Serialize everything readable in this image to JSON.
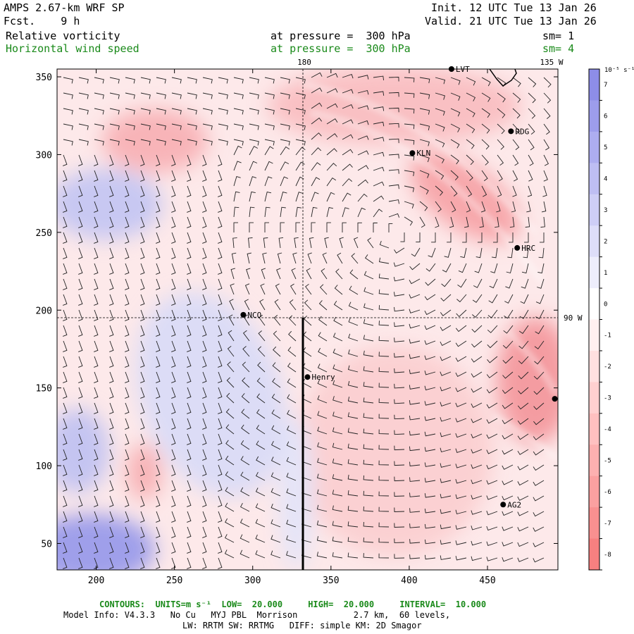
{
  "header": {
    "model": "AMPS 2.67-km WRF SP",
    "fcst": "Fcst.    9 h",
    "init": "Init. 12 UTC Tue 13 Jan 26",
    "valid": "Valid. 21 UTC Tue 13 Jan 26",
    "field1": "Relative vorticity",
    "field1_pressure": "at pressure =  300 hPa",
    "field1_sm": "sm= 1",
    "field2": "Horizontal wind speed",
    "field2_pressure": "at pressure =  300 hPa",
    "field2_sm": "sm= 4"
  },
  "map": {
    "x_ticks": [
      200,
      250,
      300,
      350,
      400,
      450
    ],
    "y_ticks": [
      50,
      100,
      150,
      200,
      250,
      300,
      350
    ],
    "x_range": [
      175,
      495
    ],
    "y_range": [
      33,
      355
    ],
    "meridian_180": "180",
    "meridian_135w": "135 W",
    "meridian_90w": "90 W",
    "stations": [
      {
        "name": "LVT",
        "x": 427,
        "y": 355
      },
      {
        "name": "RDG",
        "x": 465,
        "y": 315
      },
      {
        "name": "KLN",
        "x": 402,
        "y": 301
      },
      {
        "name": "HRC",
        "x": 469,
        "y": 240
      },
      {
        "name": "NCO",
        "x": 294,
        "y": 197
      },
      {
        "name": "Henry",
        "x": 335,
        "y": 157
      },
      {
        "name": "",
        "x": 493,
        "y": 143
      },
      {
        "name": "AG2",
        "x": 460,
        "y": 75
      }
    ]
  },
  "colorbar": {
    "unit": "10⁻⁵ s⁻¹",
    "labels": [
      "7",
      "6",
      "5",
      "4",
      "3",
      "2",
      "1",
      "0",
      "-1",
      "-2",
      "-3",
      "-4",
      "-5",
      "-6",
      "-7",
      "-8"
    ],
    "colors": [
      "#8d8de8",
      "#9d9dec",
      "#adadf0",
      "#bebef3",
      "#cecef6",
      "#dedef9",
      "#eeeefc",
      "#ffffff",
      "#fff0f0",
      "#ffe0e0",
      "#ffd0d0",
      "#ffc0c0",
      "#fdb0b0",
      "#fba0a0",
      "#f99090",
      "#f78080"
    ]
  },
  "footer": {
    "contours": "CONTOURS:  UNITS=m s⁻¹  LOW=  20.000     HIGH=  20.000     INTERVAL=  10.000",
    "model_info": "Model Info: V4.3.3   No Cu   MYJ PBL  Morrison           2.7 km,  60 levels,",
    "physics": "LW: RRTM SW: RRTMG   DIFF: simple KM: 2D Smagor"
  }
}
